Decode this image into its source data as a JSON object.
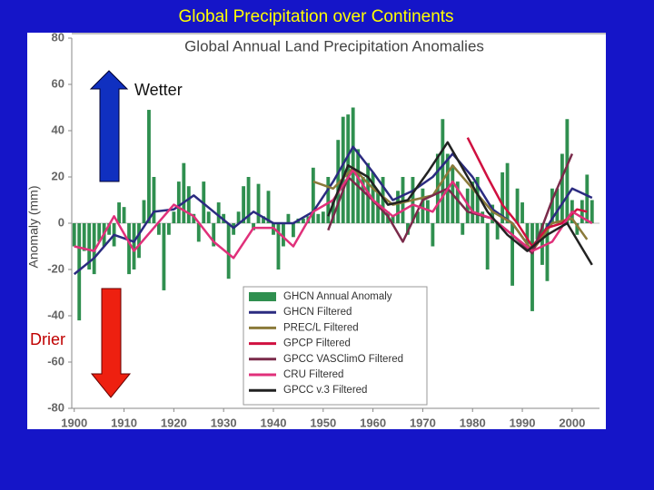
{
  "slide": {
    "title": "Global Precipitation over Continents"
  },
  "chart_data": {
    "type": "bar",
    "title": "Global Annual Land Precipitation Anomalies",
    "y_label": "Anomaly (mm)",
    "annotations": [
      "Wetter",
      "Drier"
    ],
    "xlim": [
      1899.5,
      2005.5
    ],
    "ylim": [
      -80,
      80
    ],
    "xticks": [
      1900,
      1910,
      1920,
      1930,
      1940,
      1950,
      1960,
      1970,
      1980,
      1990,
      2000
    ],
    "yticks": [
      -80,
      -60,
      -40,
      -20,
      0,
      20,
      40,
      60,
      80
    ],
    "series": [
      {
        "name": "GHCN Annual Anomaly",
        "type": "bar",
        "color": "#2f8f4f",
        "x": [
          1900,
          1901,
          1902,
          1903,
          1904,
          1905,
          1906,
          1907,
          1908,
          1909,
          1910,
          1911,
          1912,
          1913,
          1914,
          1915,
          1916,
          1917,
          1918,
          1919,
          1920,
          1921,
          1922,
          1923,
          1924,
          1925,
          1926,
          1927,
          1928,
          1929,
          1930,
          1931,
          1932,
          1933,
          1934,
          1935,
          1936,
          1937,
          1938,
          1939,
          1940,
          1941,
          1942,
          1943,
          1944,
          1945,
          1946,
          1947,
          1948,
          1949,
          1950,
          1951,
          1952,
          1953,
          1954,
          1955,
          1956,
          1957,
          1958,
          1959,
          1960,
          1961,
          1962,
          1963,
          1964,
          1965,
          1966,
          1967,
          1968,
          1969,
          1970,
          1971,
          1972,
          1973,
          1974,
          1975,
          1976,
          1977,
          1978,
          1979,
          1980,
          1981,
          1982,
          1983,
          1984,
          1985,
          1986,
          1987,
          1988,
          1989,
          1990,
          1991,
          1992,
          1993,
          1994,
          1995,
          1996,
          1997,
          1998,
          1999,
          2000,
          2001,
          2002,
          2003,
          2004
        ],
        "values": [
          -10,
          -42,
          -12,
          -20,
          -22,
          -8,
          -10,
          -5,
          -10,
          9,
          7,
          -22,
          -20,
          -15,
          10,
          49,
          20,
          -5,
          -29,
          -5,
          5,
          18,
          26,
          16,
          4,
          -8,
          18,
          5,
          -10,
          9,
          4,
          -24,
          -5,
          5,
          16,
          20,
          -3,
          17,
          3,
          14,
          -5,
          -20,
          -10,
          4,
          -6,
          2,
          2,
          3,
          24,
          4,
          5,
          20,
          10,
          36,
          46,
          47,
          50,
          32,
          20,
          26,
          22,
          14,
          20,
          5,
          3,
          14,
          20,
          -5,
          20,
          5,
          15,
          10,
          -10,
          30,
          45,
          30,
          25,
          18,
          -5,
          15,
          18,
          20,
          5,
          -20,
          8,
          -7,
          22,
          26,
          -27,
          15,
          9,
          -10,
          -38,
          -7,
          -18,
          -25,
          15,
          15,
          30,
          45,
          10,
          -5,
          10,
          21,
          10
        ]
      },
      {
        "name": "GHCN Filtered",
        "type": "line",
        "color": "#2b2b80",
        "x": [
          1900,
          1904,
          1908,
          1912,
          1916,
          1920,
          1924,
          1928,
          1932,
          1936,
          1940,
          1944,
          1948,
          1952,
          1956,
          1960,
          1964,
          1968,
          1972,
          1976,
          1980,
          1984,
          1988,
          1992,
          1996,
          2000,
          2004
        ],
        "values": [
          -22,
          -15,
          -5,
          -8,
          5,
          6,
          12,
          5,
          -2,
          5,
          0,
          0,
          5,
          18,
          33,
          22,
          10,
          14,
          20,
          30,
          20,
          6,
          0,
          -12,
          2,
          15,
          11
        ]
      },
      {
        "name": "PREC/L Filtered",
        "type": "line",
        "color": "#8b7a3a",
        "x": [
          1948,
          1952,
          1956,
          1960,
          1964,
          1968,
          1972,
          1976,
          1980,
          1984,
          1988,
          1992,
          1996,
          2000,
          2003
        ],
        "values": [
          18,
          15,
          24,
          15,
          8,
          10,
          12,
          25,
          15,
          5,
          0,
          -12,
          0,
          2,
          -7
        ]
      },
      {
        "name": "GPCP Filtered",
        "type": "line",
        "color": "#d01040",
        "x": [
          1979,
          1983,
          1986,
          1989,
          1992,
          1995,
          1998,
          2001,
          2003
        ],
        "values": [
          37,
          20,
          8,
          0,
          -10,
          -2,
          0,
          6,
          5
        ]
      },
      {
        "name": "GPCC VASClimO Filtered",
        "type": "line",
        "color": "#7a2a4a",
        "x": [
          1951,
          1955,
          1959,
          1963,
          1966,
          1970,
          1975,
          1979,
          1984,
          1988,
          1992,
          1996,
          2000
        ],
        "values": [
          -3,
          20,
          12,
          3,
          -8,
          10,
          15,
          5,
          2,
          -5,
          -13,
          10,
          30
        ]
      },
      {
        "name": "CRU Filtered",
        "type": "line",
        "color": "#e0307a",
        "x": [
          1900,
          1904,
          1908,
          1912,
          1916,
          1920,
          1924,
          1928,
          1932,
          1936,
          1940,
          1944,
          1948,
          1952,
          1956,
          1960,
          1964,
          1968,
          1972,
          1976,
          1980,
          1984,
          1988,
          1992,
          1996,
          2000,
          2004
        ],
        "values": [
          -10,
          -12,
          3,
          -12,
          -2,
          8,
          3,
          -8,
          -15,
          -2,
          -2,
          -10,
          5,
          10,
          23,
          10,
          3,
          8,
          5,
          18,
          5,
          2,
          -5,
          -12,
          -8,
          5,
          0
        ]
      },
      {
        "name": "GPCC v.3 Filtered",
        "type": "line",
        "color": "#222222",
        "x": [
          1951,
          1955,
          1959,
          1963,
          1967,
          1971,
          1975,
          1979,
          1983,
          1987,
          1991,
          1995,
          1999,
          2004
        ],
        "values": [
          3,
          25,
          20,
          8,
          10,
          22,
          35,
          20,
          5,
          -5,
          -12,
          -5,
          0,
          -18
        ]
      }
    ]
  }
}
